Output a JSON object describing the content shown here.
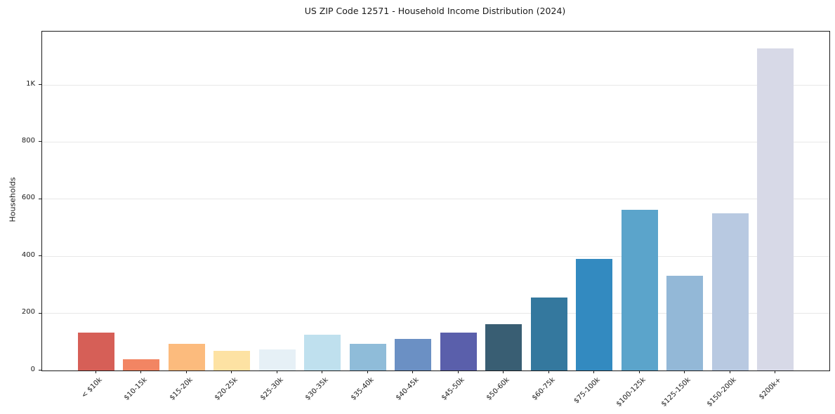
{
  "chart_data": {
    "type": "bar",
    "title": "US ZIP Code 12571 - Household Income Distribution (2024)",
    "xlabel": "",
    "ylabel": "Households",
    "categories": [
      "< $10k",
      "$10-15k",
      "$15-20k",
      "$20-25k",
      "$25-30k",
      "$30-35k",
      "$35-40k",
      "$40-45k",
      "$45-50k",
      "$50-60k",
      "$60-75k",
      "$75-100k",
      "$100-125k",
      "$125-150k",
      "$150-200k",
      "$200k+"
    ],
    "values": [
      132,
      40,
      93,
      69,
      74,
      126,
      94,
      110,
      133,
      162,
      256,
      390,
      562,
      331,
      550,
      1128
    ],
    "bar_colors": [
      "#d65f57",
      "#f28563",
      "#fcbb7d",
      "#fde2a3",
      "#e6f0f6",
      "#bfe0ee",
      "#8fbcd9",
      "#6b90c4",
      "#5a5fab",
      "#395e73",
      "#34789e",
      "#338ac0",
      "#5ba4cb",
      "#93b8d7",
      "#b8c9e1",
      "#d7d9e7"
    ],
    "ylim": [
      0,
      1187
    ],
    "yticks": {
      "values": [
        0,
        200,
        400,
        600,
        800,
        1000
      ],
      "labels": [
        "0",
        "200",
        "400",
        "600",
        "800",
        "1K"
      ]
    },
    "xtick_rotation_deg": 45,
    "grid": "horizontal",
    "gridline_color": "#e8e8e8",
    "spine_color": "#1a1a1a",
    "background_color": "#ffffff",
    "legend": "none"
  }
}
